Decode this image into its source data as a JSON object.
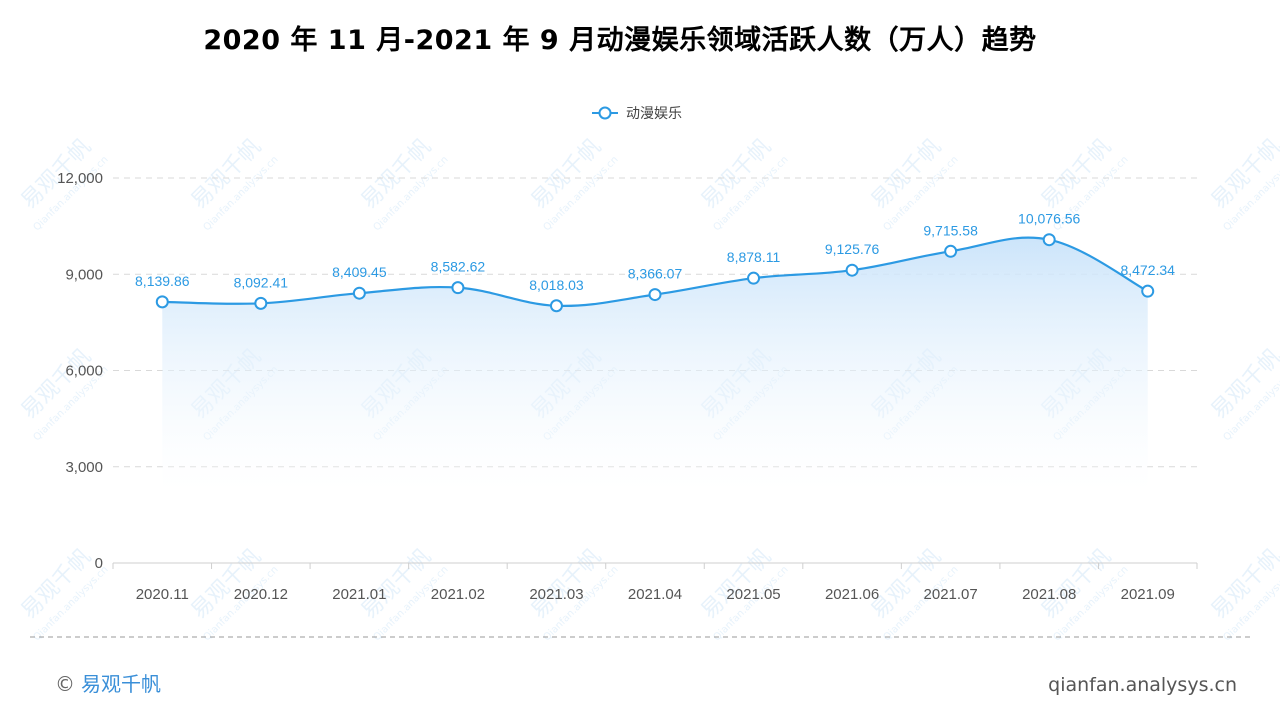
{
  "title": "2020 年 11 月-2021 年 9 月动漫娱乐领域活跃人数（万人）趋势",
  "footer": {
    "copyright_symbol": "©",
    "brand": "易观千帆",
    "url": "qianfan.analysys.cn"
  },
  "colors": {
    "line": "#2c9ae3",
    "area_top": "#cfe6fb",
    "grid": "#d9d9d9",
    "watermark": "#d4e8f8"
  },
  "watermark": {
    "text_cn": "易观千帆",
    "text_en": "Qianfan.analysys.cn"
  },
  "chart_data": {
    "type": "area",
    "title": "2020 年 11 月-2021 年 9 月动漫娱乐领域活跃人数（万人）趋势",
    "xlabel": "",
    "ylabel": "",
    "categories": [
      "2020.11",
      "2020.12",
      "2021.01",
      "2021.02",
      "2021.03",
      "2021.04",
      "2021.05",
      "2021.06",
      "2021.07",
      "2021.08",
      "2021.09"
    ],
    "series": [
      {
        "name": "动漫娱乐",
        "values": [
          8139.86,
          8092.41,
          8409.45,
          8582.62,
          8018.03,
          8366.07,
          8878.11,
          9125.76,
          9715.58,
          10076.56,
          8472.34
        ],
        "labels": [
          "8,139.86",
          "8,092.41",
          "8,409.45",
          "8,582.62",
          "8,018.03",
          "8,366.07",
          "8,878.11",
          "9,125.76",
          "9,715.58",
          "10,076.56",
          "8,472.34"
        ]
      }
    ],
    "ylim": [
      0,
      12000
    ],
    "yticks": [
      0,
      3000,
      6000,
      9000,
      12000
    ],
    "ytick_labels": [
      "0",
      "3,000",
      "6,000",
      "9,000",
      "12,000"
    ],
    "grid": true,
    "legend_position": "top-center",
    "smooth": true
  }
}
